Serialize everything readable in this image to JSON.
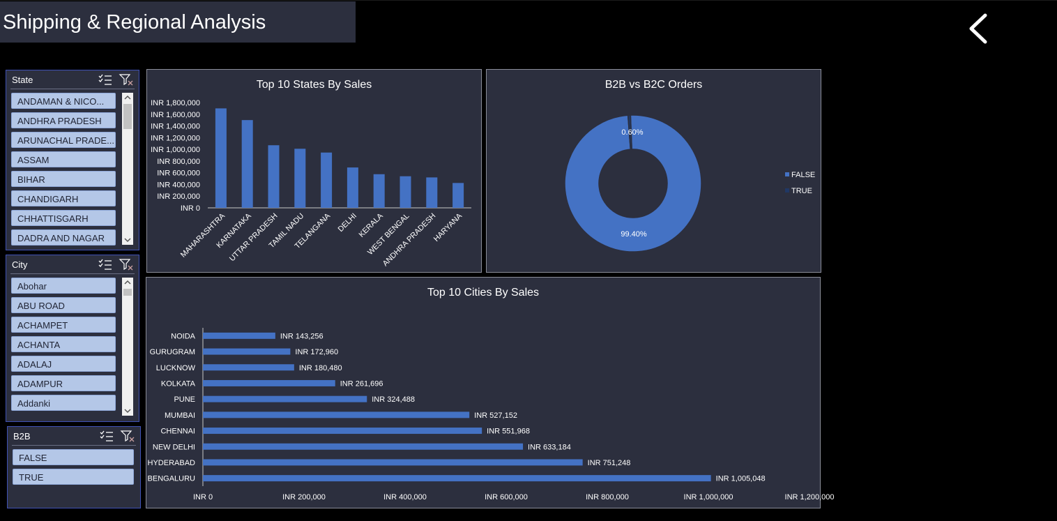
{
  "title": "Shipping & Regional Analysis",
  "icons": {
    "back": "chevron-left-icon",
    "multiselect": "multi-select-icon",
    "clear_filter": "clear-filter-icon"
  },
  "colors": {
    "accent": "#4472c4",
    "panel": "#2c2f3e",
    "slicer_item": "#b4c7e7",
    "true_series": "#203864"
  },
  "slicers": {
    "state": {
      "title": "State",
      "items": [
        "ANDAMAN & NICO...",
        "ANDHRA PRADESH",
        "ARUNACHAL PRADE...",
        "ASSAM",
        "BIHAR",
        "CHANDIGARH",
        "CHHATTISGARH",
        "DADRA AND NAGAR"
      ]
    },
    "city": {
      "title": "City",
      "items": [
        "Abohar",
        "ABU ROAD",
        "ACHAMPET",
        "ACHANTA",
        "ADALAJ",
        "ADAMPUR",
        "Addanki"
      ]
    },
    "b2b": {
      "title": "B2B",
      "items": [
        "FALSE",
        "TRUE"
      ]
    }
  },
  "chart_data": [
    {
      "type": "bar",
      "title": "Top 10 States By Sales",
      "categories": [
        "MAHARASHTRA",
        "KARNATAKA",
        "UTTAR PRADESH",
        "TAMIL NADU",
        "TELANGANA",
        "DELHI",
        "KERALA",
        "WEST BENGAL",
        "ANDHRA PRADESH",
        "HARYANA"
      ],
      "values": [
        1700000,
        1500000,
        1070000,
        1010000,
        945000,
        690000,
        575000,
        540000,
        520000,
        425000
      ],
      "ylim": [
        0,
        1800000
      ],
      "yticks": [
        "INR 0",
        "INR 200,000",
        "INR 400,000",
        "INR 600,000",
        "INR 800,000",
        "INR 1,000,000",
        "INR 1,200,000",
        "INR 1,400,000",
        "INR 1,600,000",
        "INR 1,800,000"
      ],
      "grid": false
    },
    {
      "type": "pie",
      "title": "B2B vs B2C Orders",
      "labels": [
        "FALSE",
        "TRUE"
      ],
      "values": [
        99.4,
        0.6
      ],
      "data_labels": [
        "99.40%",
        "0.60%"
      ],
      "legend": "right",
      "donut": true
    },
    {
      "type": "bar",
      "orientation": "horizontal",
      "title": "Top 10 Cities By Sales",
      "categories": [
        "NOIDA",
        "GURUGRAM",
        "LUCKNOW",
        "KOLKATA",
        "PUNE",
        "MUMBAI",
        "CHENNAI",
        "NEW DELHI",
        "HYDERABAD",
        "BENGALURU"
      ],
      "values": [
        143256,
        172960,
        180480,
        261696,
        324488,
        527152,
        551968,
        633184,
        751248,
        1005048
      ],
      "data_labels": [
        "INR 143,256",
        "INR 172,960",
        "INR 180,480",
        "INR 261,696",
        "INR 324,488",
        "INR 527,152",
        "INR 551,968",
        "INR 633,184",
        "INR 751,248",
        "INR 1,005,048"
      ],
      "xlim": [
        0,
        1200000
      ],
      "xticks": [
        "INR 0",
        "INR 200,000",
        "INR 400,000",
        "INR 600,000",
        "INR 800,000",
        "INR 1,000,000",
        "INR 1,200,000"
      ],
      "grid": false
    }
  ]
}
